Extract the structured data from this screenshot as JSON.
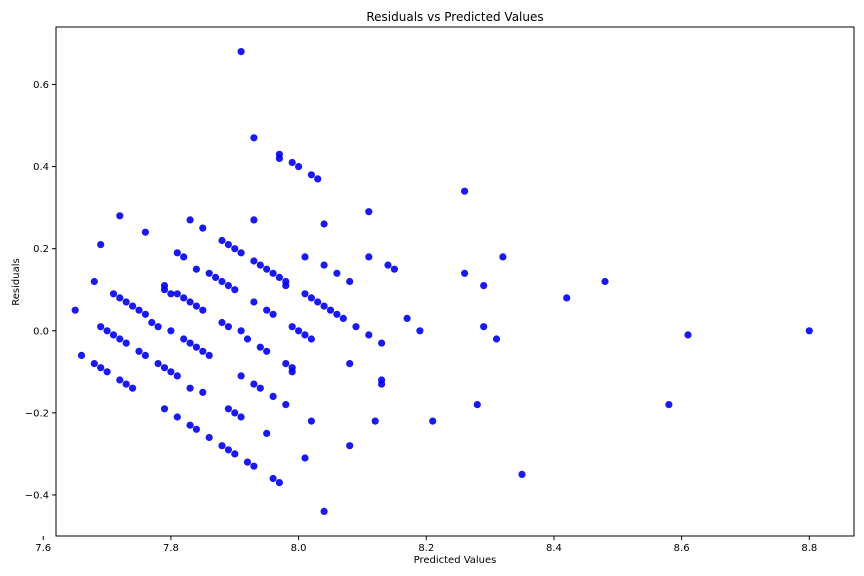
{
  "chart_data": {
    "type": "scatter",
    "title": "Residuals vs Predicted Values",
    "xlabel": "Predicted Values",
    "ylabel": "Residuals",
    "xlim": [
      7.62,
      8.87
    ],
    "ylim": [
      -0.5,
      0.74
    ],
    "xticks": [
      7.6,
      7.8,
      8.0,
      8.2,
      8.4,
      8.6,
      8.8
    ],
    "xtick_labels": [
      "7.6",
      "7.8",
      "8.0",
      "8.2",
      "8.4",
      "8.6",
      "8.8"
    ],
    "yticks": [
      -0.4,
      -0.2,
      0.0,
      0.2,
      0.4,
      0.6
    ],
    "ytick_labels": [
      "−0.4",
      "−0.2",
      "0.0",
      "0.2",
      "0.4",
      "0.6"
    ],
    "grid": false,
    "point_color": "#0000ee",
    "points": [
      [
        7.65,
        0.05
      ],
      [
        7.66,
        -0.06
      ],
      [
        7.68,
        0.12
      ],
      [
        7.68,
        -0.08
      ],
      [
        7.69,
        0.21
      ],
      [
        7.69,
        0.01
      ],
      [
        7.69,
        -0.09
      ],
      [
        7.7,
        0.0
      ],
      [
        7.7,
        -0.1
      ],
      [
        7.71,
        -0.01
      ],
      [
        7.71,
        0.09
      ],
      [
        7.72,
        0.08
      ],
      [
        7.72,
        0.28
      ],
      [
        7.72,
        -0.02
      ],
      [
        7.72,
        -0.12
      ],
      [
        7.73,
        -0.03
      ],
      [
        7.73,
        -0.13
      ],
      [
        7.73,
        0.07
      ],
      [
        7.74,
        0.06
      ],
      [
        7.74,
        -0.14
      ],
      [
        7.75,
        0.05
      ],
      [
        7.75,
        -0.05
      ],
      [
        7.76,
        0.24
      ],
      [
        7.76,
        -0.06
      ],
      [
        7.76,
        0.04
      ],
      [
        7.77,
        0.02
      ],
      [
        7.78,
        -0.08
      ],
      [
        7.78,
        0.01
      ],
      [
        7.79,
        0.11
      ],
      [
        7.79,
        -0.09
      ],
      [
        7.79,
        -0.19
      ],
      [
        7.79,
        0.1
      ],
      [
        7.8,
        0.0
      ],
      [
        7.8,
        -0.1
      ],
      [
        7.8,
        0.09
      ],
      [
        7.81,
        0.19
      ],
      [
        7.81,
        0.09
      ],
      [
        7.81,
        -0.11
      ],
      [
        7.81,
        -0.21
      ],
      [
        7.82,
        0.08
      ],
      [
        7.82,
        -0.02
      ],
      [
        7.82,
        0.18
      ],
      [
        7.83,
        0.27
      ],
      [
        7.83,
        0.07
      ],
      [
        7.83,
        -0.03
      ],
      [
        7.83,
        -0.23
      ],
      [
        7.83,
        -0.14
      ],
      [
        7.84,
        -0.04
      ],
      [
        7.84,
        -0.24
      ],
      [
        7.84,
        0.15
      ],
      [
        7.84,
        0.06
      ],
      [
        7.85,
        0.25
      ],
      [
        7.85,
        0.05
      ],
      [
        7.85,
        -0.05
      ],
      [
        7.85,
        -0.15
      ],
      [
        7.86,
        0.14
      ],
      [
        7.86,
        -0.06
      ],
      [
        7.86,
        -0.26
      ],
      [
        7.87,
        0.13
      ],
      [
        7.88,
        0.22
      ],
      [
        7.88,
        0.02
      ],
      [
        7.88,
        0.12
      ],
      [
        7.88,
        -0.28
      ],
      [
        7.89,
        0.11
      ],
      [
        7.89,
        0.21
      ],
      [
        7.89,
        0.01
      ],
      [
        7.89,
        -0.19
      ],
      [
        7.89,
        -0.29
      ],
      [
        7.9,
        -0.2
      ],
      [
        7.9,
        0.2
      ],
      [
        7.9,
        0.1
      ],
      [
        7.9,
        -0.3
      ],
      [
        7.91,
        0.0
      ],
      [
        7.91,
        -0.11
      ],
      [
        7.91,
        0.19
      ],
      [
        7.91,
        0.68
      ],
      [
        7.91,
        -0.21
      ],
      [
        7.92,
        -0.02
      ],
      [
        7.92,
        -0.32
      ],
      [
        7.93,
        0.47
      ],
      [
        7.93,
        0.27
      ],
      [
        7.93,
        0.07
      ],
      [
        7.93,
        -0.13
      ],
      [
        7.93,
        -0.33
      ],
      [
        7.93,
        0.17
      ],
      [
        7.94,
        -0.04
      ],
      [
        7.94,
        -0.14
      ],
      [
        7.94,
        0.16
      ],
      [
        7.95,
        0.15
      ],
      [
        7.95,
        0.05
      ],
      [
        7.95,
        -0.05
      ],
      [
        7.95,
        -0.25
      ],
      [
        7.96,
        0.14
      ],
      [
        7.96,
        0.04
      ],
      [
        7.96,
        -0.16
      ],
      [
        7.96,
        -0.36
      ],
      [
        7.97,
        0.43
      ],
      [
        7.97,
        0.13
      ],
      [
        7.97,
        -0.37
      ],
      [
        7.97,
        0.42
      ],
      [
        7.98,
        0.12
      ],
      [
        7.98,
        -0.08
      ],
      [
        7.98,
        -0.18
      ],
      [
        7.98,
        0.11
      ],
      [
        7.99,
        0.41
      ],
      [
        7.99,
        0.01
      ],
      [
        7.99,
        -0.09
      ],
      [
        7.99,
        -0.1
      ],
      [
        8.0,
        0.4
      ],
      [
        8.0,
        0.0
      ],
      [
        8.01,
        0.09
      ],
      [
        8.01,
        -0.01
      ],
      [
        8.01,
        -0.31
      ],
      [
        8.01,
        0.18
      ],
      [
        8.02,
        0.38
      ],
      [
        8.02,
        0.08
      ],
      [
        8.02,
        -0.02
      ],
      [
        8.02,
        -0.22
      ],
      [
        8.03,
        0.37
      ],
      [
        8.03,
        0.07
      ],
      [
        8.04,
        0.06
      ],
      [
        8.04,
        0.16
      ],
      [
        8.04,
        0.26
      ],
      [
        8.04,
        -0.44
      ],
      [
        8.05,
        0.05
      ],
      [
        8.06,
        0.04
      ],
      [
        8.06,
        0.14
      ],
      [
        8.07,
        0.03
      ],
      [
        8.08,
        -0.08
      ],
      [
        8.08,
        -0.28
      ],
      [
        8.08,
        0.12
      ],
      [
        8.09,
        0.01
      ],
      [
        8.11,
        0.29
      ],
      [
        8.11,
        -0.01
      ],
      [
        8.11,
        0.18
      ],
      [
        8.12,
        -0.22
      ],
      [
        8.13,
        -0.12
      ],
      [
        8.13,
        -0.13
      ],
      [
        8.13,
        -0.03
      ],
      [
        8.14,
        0.16
      ],
      [
        8.15,
        0.15
      ],
      [
        8.17,
        0.03
      ],
      [
        8.19,
        0.0
      ],
      [
        8.21,
        -0.22
      ],
      [
        8.26,
        0.34
      ],
      [
        8.26,
        0.14
      ],
      [
        8.28,
        -0.18
      ],
      [
        8.29,
        0.01
      ],
      [
        8.29,
        0.11
      ],
      [
        8.31,
        -0.02
      ],
      [
        8.32,
        0.18
      ],
      [
        8.35,
        -0.35
      ],
      [
        8.42,
        0.08
      ],
      [
        8.48,
        0.12
      ],
      [
        8.58,
        -0.18
      ],
      [
        8.61,
        -0.01
      ],
      [
        8.8,
        0.0
      ]
    ]
  }
}
